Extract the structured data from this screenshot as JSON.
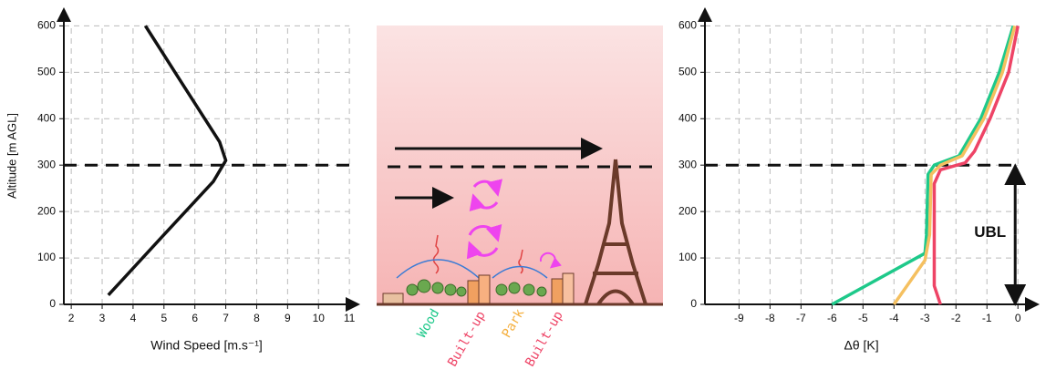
{
  "chart_data": [
    {
      "type": "line",
      "ylabel": "Altitude [m AGL]",
      "xlabel": "Wind Speed [m.s⁻¹]",
      "xlim": [
        1.76,
        11.35
      ],
      "xticks": [
        2,
        3,
        4,
        5,
        6,
        7,
        8,
        9,
        10,
        11
      ],
      "ylim": [
        0,
        640
      ],
      "yticks": [
        0,
        100,
        200,
        300,
        400,
        500,
        600
      ],
      "grid": true,
      "hline": 300,
      "series": [
        {
          "color": "#111111",
          "x": [
            3.2,
            5,
            6.6,
            7.0,
            6.8,
            5.5,
            4.4
          ],
          "values": [
            20,
            150,
            265,
            310,
            350,
            485,
            600
          ]
        }
      ]
    },
    {
      "type": "line",
      "xlabel": "Δθ [K]",
      "annotation": "UBL",
      "xlim": [
        -10.1,
        0.7
      ],
      "xticks": [
        -9,
        -8,
        -7,
        -6,
        -5,
        -4,
        -3,
        -2,
        -1,
        0
      ],
      "ylim": [
        0,
        640
      ],
      "yticks": [
        0,
        100,
        200,
        300,
        400,
        500,
        600
      ],
      "grid": true,
      "hline": 300,
      "series": [
        {
          "name": "Wood",
          "color": "#1ec98a",
          "x": [
            -6,
            -3,
            -2.95,
            -2.9,
            -2.7,
            -1.9,
            -1.2,
            -0.6,
            -0.15
          ],
          "values": [
            0,
            110,
            150,
            280,
            300,
            320,
            400,
            500,
            600
          ]
        },
        {
          "name": "Park",
          "color": "#f5c060",
          "x": [
            -4,
            -3,
            -2.85,
            -2.8,
            -2.5,
            -1.8,
            -1.1,
            -0.5,
            -0.1
          ],
          "values": [
            0,
            95,
            150,
            280,
            300,
            320,
            400,
            500,
            600
          ]
        },
        {
          "name": "Built-up",
          "color": "#ee4466",
          "x": [
            -2.5,
            -2.7,
            -2.7,
            -2.5,
            -1.7,
            -1.4,
            -0.9,
            -0.3,
            0
          ],
          "values": [
            0,
            40,
            260,
            290,
            305,
            330,
            400,
            500,
            600
          ]
        }
      ]
    }
  ]
}
